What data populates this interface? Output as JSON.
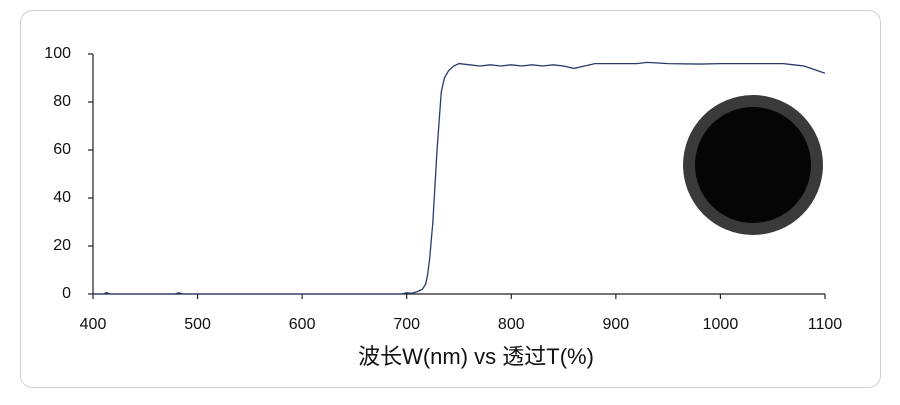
{
  "chart_data": {
    "type": "line",
    "x_label": "波长W(nm) vs 透过T(%)",
    "xlim": [
      400,
      1100
    ],
    "xticks": [
      400,
      500,
      600,
      700,
      800,
      900,
      1000,
      1100
    ],
    "ylim": [
      0,
      100
    ],
    "yticks": [
      0,
      20,
      40,
      60,
      80,
      100
    ],
    "grid": false,
    "series": [
      {
        "color": "#2b3a6b",
        "x": [
          400,
          410,
          413,
          416,
          450,
          478,
          482,
          486,
          600,
          695,
          700,
          705,
          710,
          715,
          718,
          720,
          722,
          725,
          727,
          729,
          731,
          733,
          736,
          740,
          745,
          750,
          760,
          770,
          780,
          790,
          800,
          810,
          820,
          830,
          840,
          850,
          860,
          870,
          880,
          890,
          900,
          920,
          930,
          950,
          980,
          1000,
          1030,
          1060,
          1070,
          1080,
          1090,
          1100
        ],
        "values": [
          0,
          0,
          0.6,
          0,
          0,
          0,
          0.5,
          0,
          0,
          0,
          0.5,
          0.3,
          1,
          2,
          4,
          8,
          15,
          30,
          45,
          60,
          72,
          84,
          90,
          93,
          95,
          96,
          95.5,
          95,
          95.5,
          95,
          95.5,
          95,
          95.5,
          95,
          95.5,
          95,
          94,
          95,
          96,
          96,
          96,
          96,
          96.5,
          96,
          95.8,
          96,
          96,
          96,
          95.5,
          95,
          93.5,
          92
        ]
      }
    ]
  }
}
